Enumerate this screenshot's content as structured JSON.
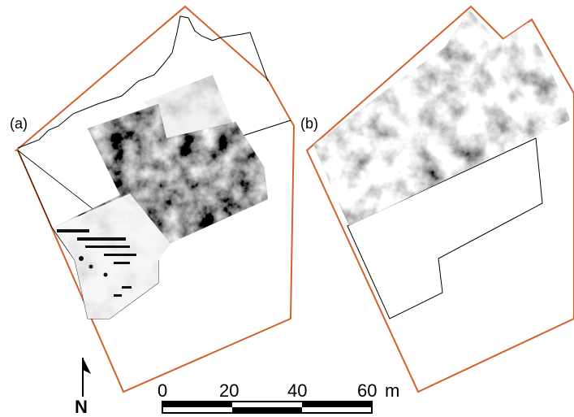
{
  "panels": [
    {
      "label": "(a)"
    },
    {
      "label": "(b)"
    }
  ],
  "north_arrow": {
    "label": "N"
  },
  "scale_bar": {
    "ticks": [
      "0",
      "20",
      "40",
      "60"
    ],
    "unit": "m"
  },
  "colors": {
    "site_boundary": "#d2622a",
    "survey_outline": "#000000",
    "survey_dark": "#1a1a1a",
    "survey_light": "#f2f2f2"
  }
}
